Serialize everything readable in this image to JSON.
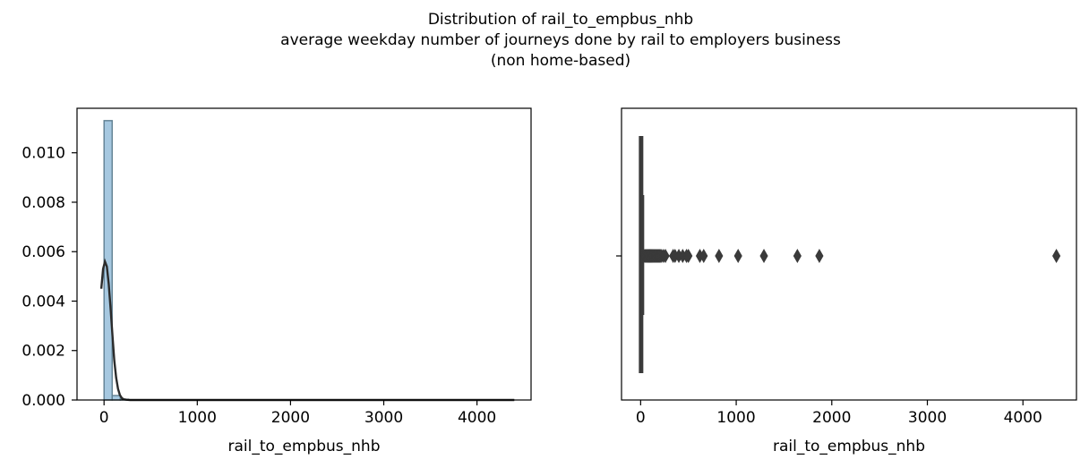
{
  "title_lines": [
    "Distribution of rail_to_empbus_nhb",
    "average weekday number of journeys done by rail to employers business",
    "(non home-based)"
  ],
  "chart_data": [
    {
      "type": "histogram",
      "xlabel": "rail_to_empbus_nhb",
      "ylabel": "",
      "xlim": [
        -290,
        4580
      ],
      "ylim": [
        0,
        0.0118
      ],
      "xticks": [
        0,
        1000,
        2000,
        3000,
        4000
      ],
      "yticks": [
        0.0,
        0.002,
        0.004,
        0.006,
        0.008,
        0.01
      ],
      "ytick_labels": [
        "0.000",
        "0.002",
        "0.004",
        "0.006",
        "0.008",
        "0.010"
      ],
      "bins": [
        {
          "x0": 0,
          "x1": 87,
          "density": 0.0113
        },
        {
          "x0": 87,
          "x1": 174,
          "density": 0.00018
        },
        {
          "x0": 174,
          "x1": 261,
          "density": 3e-05
        }
      ],
      "kde": {
        "x": [
          -30,
          -10,
          10,
          30,
          50,
          70,
          90,
          110,
          130,
          150,
          170,
          190,
          210,
          240,
          280,
          350,
          500,
          1000,
          2000,
          3000,
          4000,
          4400
        ],
        "y": [
          0.0045,
          0.0053,
          0.0056,
          0.0054,
          0.0047,
          0.0037,
          0.0026,
          0.0016,
          0.0009,
          0.00045,
          0.0002,
          8e-05,
          3e-05,
          1e-05,
          0,
          0,
          0,
          0,
          0,
          0,
          0,
          0
        ]
      },
      "hist_color": "#a6c8e0",
      "kde_color": "#2b2b2b"
    },
    {
      "type": "boxplot",
      "xlabel": "rail_to_empbus_nhb",
      "xlim": [
        -200,
        4560
      ],
      "xticks": [
        0,
        1000,
        2000,
        3000,
        4000
      ],
      "box": {
        "q1": 0,
        "median": 5,
        "q3": 12,
        "whisker_low": 0,
        "whisker_high": 28
      },
      "outliers": [
        35,
        45,
        55,
        65,
        75,
        85,
        95,
        105,
        115,
        125,
        135,
        145,
        155,
        165,
        175,
        185,
        195,
        205,
        220,
        240,
        260,
        340,
        360,
        400,
        440,
        480,
        500,
        620,
        660,
        820,
        1020,
        1290,
        1640,
        1870,
        4350
      ],
      "color": "#3a3a3a"
    }
  ]
}
